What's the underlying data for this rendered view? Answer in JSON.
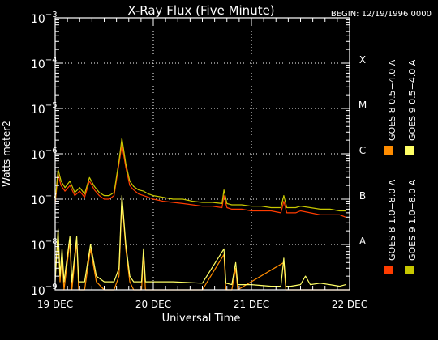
{
  "chart_data": {
    "type": "line",
    "title": "X-Ray Flux (Five Minute)",
    "begin_label": "BEGIN: 12/19/1996 0000",
    "xlabel": "Universal Time",
    "ylabel": "Watts meter2",
    "x_ticks": [
      "19 DEC",
      "20 DEC",
      "21 DEC",
      "22 DEC"
    ],
    "x_range_days": [
      0,
      3
    ],
    "y_scale": "log",
    "ylim": [
      1e-09,
      0.001
    ],
    "y_ticks": [
      {
        "value": 1e-09,
        "base": "10",
        "exp": "−9"
      },
      {
        "value": 1e-08,
        "base": "10",
        "exp": "−8"
      },
      {
        "value": 1e-07,
        "base": "10",
        "exp": "−7"
      },
      {
        "value": 1e-06,
        "base": "10",
        "exp": "−6"
      },
      {
        "value": 1e-05,
        "base": "10",
        "exp": "−5"
      },
      {
        "value": 0.0001,
        "base": "10",
        "exp": "−4"
      },
      {
        "value": 0.001,
        "base": "10",
        "exp": "−3"
      }
    ],
    "flare_classes": [
      {
        "label": "A",
        "value": 1e-08
      },
      {
        "label": "B",
        "value": 1e-07
      },
      {
        "label": "C",
        "value": 1e-06
      },
      {
        "label": "M",
        "value": 1e-05
      },
      {
        "label": "X",
        "value": 0.0001
      }
    ],
    "grid": "dotted at day boundaries and class levels",
    "legend_placement": "right, rotated vertical",
    "series": [
      {
        "name": "GOES 8 1.0−8.0 A",
        "color": "#ff3c00",
        "points": [
          [
            0.0,
            8e-08
          ],
          [
            0.03,
            3.5e-07
          ],
          [
            0.06,
            2e-07
          ],
          [
            0.1,
            1.5e-07
          ],
          [
            0.15,
            2e-07
          ],
          [
            0.2,
            1.2e-07
          ],
          [
            0.25,
            1.5e-07
          ],
          [
            0.3,
            1.1e-07
          ],
          [
            0.35,
            2.5e-07
          ],
          [
            0.4,
            1.6e-07
          ],
          [
            0.45,
            1.2e-07
          ],
          [
            0.5,
            1e-07
          ],
          [
            0.55,
            1e-07
          ],
          [
            0.6,
            1.2e-07
          ],
          [
            0.65,
            6e-07
          ],
          [
            0.68,
            1.6e-06
          ],
          [
            0.72,
            5e-07
          ],
          [
            0.76,
            2e-07
          ],
          [
            0.8,
            1.6e-07
          ],
          [
            0.85,
            1.3e-07
          ],
          [
            0.9,
            1.2e-07
          ],
          [
            0.95,
            1.1e-07
          ],
          [
            1.0,
            1e-07
          ],
          [
            1.1,
            9e-08
          ],
          [
            1.2,
            8.5e-08
          ],
          [
            1.3,
            8e-08
          ],
          [
            1.4,
            7.5e-08
          ],
          [
            1.5,
            7e-08
          ],
          [
            1.6,
            7e-08
          ],
          [
            1.7,
            6.5e-08
          ],
          [
            1.72,
            1.2e-07
          ],
          [
            1.75,
            6.5e-08
          ],
          [
            1.8,
            6e-08
          ],
          [
            1.9,
            6e-08
          ],
          [
            2.0,
            5.5e-08
          ],
          [
            2.1,
            5.5e-08
          ],
          [
            2.2,
            5.5e-08
          ],
          [
            2.3,
            5e-08
          ],
          [
            2.33,
            9e-08
          ],
          [
            2.36,
            5e-08
          ],
          [
            2.4,
            5e-08
          ],
          [
            2.45,
            5e-08
          ],
          [
            2.5,
            5.5e-08
          ],
          [
            2.6,
            5e-08
          ],
          [
            2.7,
            4.5e-08
          ],
          [
            2.8,
            4.5e-08
          ],
          [
            2.9,
            4.5e-08
          ],
          [
            2.96,
            4e-08
          ]
        ]
      },
      {
        "name": "GOES 8 0.5−4.0 A",
        "color": "#ff8c00",
        "points": [
          [
            0.0,
            2e-09
          ],
          [
            0.03,
            1.8e-08
          ],
          [
            0.05,
            1.5e-09
          ],
          [
            0.07,
            6e-09
          ],
          [
            0.09,
            1e-09
          ],
          [
            0.15,
            1.2e-08
          ],
          [
            0.17,
            1e-09
          ],
          [
            0.22,
            1.2e-08
          ],
          [
            0.24,
            1e-09
          ],
          [
            0.3,
            1e-09
          ],
          [
            0.36,
            8e-09
          ],
          [
            0.42,
            1.5e-09
          ],
          [
            0.5,
            1e-09
          ],
          [
            0.6,
            1e-09
          ],
          [
            0.65,
            2e-09
          ],
          [
            0.68,
            1e-07
          ],
          [
            0.72,
            8e-09
          ],
          [
            0.76,
            1.5e-09
          ],
          [
            0.8,
            1e-09
          ],
          [
            0.88,
            1e-09
          ],
          [
            0.9,
            6e-09
          ],
          [
            0.92,
            1e-09
          ],
          [
            1.5,
            1e-09
          ],
          [
            1.72,
            6e-09
          ],
          [
            1.74,
            1e-09
          ],
          [
            1.8,
            1e-09
          ],
          [
            1.84,
            3e-09
          ],
          [
            1.86,
            1e-09
          ],
          [
            2.33,
            4e-09
          ],
          [
            2.35,
            1e-09
          ],
          [
            3.0,
            1e-09
          ]
        ]
      },
      {
        "name": "GOES 9 1.0−8.0 A",
        "color": "#c8c800",
        "points": [
          [
            0.0,
            9e-08
          ],
          [
            0.03,
            4.5e-07
          ],
          [
            0.06,
            2.5e-07
          ],
          [
            0.1,
            1.8e-07
          ],
          [
            0.15,
            2.5e-07
          ],
          [
            0.2,
            1.4e-07
          ],
          [
            0.25,
            1.8e-07
          ],
          [
            0.3,
            1.3e-07
          ],
          [
            0.35,
            3e-07
          ],
          [
            0.4,
            1.9e-07
          ],
          [
            0.45,
            1.4e-07
          ],
          [
            0.5,
            1.2e-07
          ],
          [
            0.55,
            1.2e-07
          ],
          [
            0.6,
            1.4e-07
          ],
          [
            0.65,
            7e-07
          ],
          [
            0.68,
            2.2e-06
          ],
          [
            0.72,
            6e-07
          ],
          [
            0.76,
            2.5e-07
          ],
          [
            0.8,
            1.9e-07
          ],
          [
            0.85,
            1.6e-07
          ],
          [
            0.9,
            1.5e-07
          ],
          [
            0.95,
            1.3e-07
          ],
          [
            1.0,
            1.2e-07
          ],
          [
            1.1,
            1.1e-07
          ],
          [
            1.2,
            1e-07
          ],
          [
            1.3,
            1e-07
          ],
          [
            1.4,
            9e-08
          ],
          [
            1.5,
            8.5e-08
          ],
          [
            1.6,
            8.5e-08
          ],
          [
            1.7,
            8e-08
          ],
          [
            1.72,
            1.6e-07
          ],
          [
            1.75,
            8e-08
          ],
          [
            1.8,
            7.5e-08
          ],
          [
            1.9,
            7.5e-08
          ],
          [
            2.0,
            7e-08
          ],
          [
            2.1,
            7e-08
          ],
          [
            2.2,
            6.5e-08
          ],
          [
            2.3,
            6.5e-08
          ],
          [
            2.33,
            1.2e-07
          ],
          [
            2.36,
            6.5e-08
          ],
          [
            2.4,
            6.5e-08
          ],
          [
            2.45,
            6.5e-08
          ],
          [
            2.5,
            7e-08
          ],
          [
            2.6,
            6.5e-08
          ],
          [
            2.7,
            6e-08
          ],
          [
            2.8,
            6e-08
          ],
          [
            2.9,
            5.5e-08
          ],
          [
            2.96,
            5.5e-08
          ]
        ]
      },
      {
        "name": "GOES 9 0.5−4.0 A",
        "color": "#ffff66",
        "points": [
          [
            0.0,
            1.5e-09
          ],
          [
            0.03,
            2.2e-08
          ],
          [
            0.05,
            2e-09
          ],
          [
            0.07,
            8e-09
          ],
          [
            0.09,
            1.5e-09
          ],
          [
            0.15,
            1.5e-08
          ],
          [
            0.17,
            1.5e-09
          ],
          [
            0.22,
            1.5e-08
          ],
          [
            0.24,
            1.5e-09
          ],
          [
            0.3,
            1.5e-09
          ],
          [
            0.36,
            1e-08
          ],
          [
            0.42,
            2e-09
          ],
          [
            0.5,
            1.5e-09
          ],
          [
            0.6,
            1.5e-09
          ],
          [
            0.65,
            3e-09
          ],
          [
            0.68,
            1.2e-07
          ],
          [
            0.72,
            1e-08
          ],
          [
            0.76,
            2e-09
          ],
          [
            0.8,
            1.5e-09
          ],
          [
            0.88,
            1.5e-09
          ],
          [
            0.9,
            8e-09
          ],
          [
            0.92,
            1.5e-09
          ],
          [
            1.2,
            1.5e-09
          ],
          [
            1.5,
            1.4e-09
          ],
          [
            1.72,
            8e-09
          ],
          [
            1.74,
            1.4e-09
          ],
          [
            1.8,
            1.3e-09
          ],
          [
            1.84,
            4e-09
          ],
          [
            1.86,
            1.3e-09
          ],
          [
            2.0,
            1.3e-09
          ],
          [
            2.2,
            1.2e-09
          ],
          [
            2.3,
            1.2e-09
          ],
          [
            2.33,
            5e-09
          ],
          [
            2.35,
            1.2e-09
          ],
          [
            2.4,
            1.2e-09
          ],
          [
            2.5,
            1.3e-09
          ],
          [
            2.55,
            2e-09
          ],
          [
            2.6,
            1.3e-09
          ],
          [
            2.7,
            1.4e-09
          ],
          [
            2.8,
            1.3e-09
          ],
          [
            2.9,
            1.2e-09
          ],
          [
            2.96,
            1.3e-09
          ]
        ]
      }
    ]
  }
}
